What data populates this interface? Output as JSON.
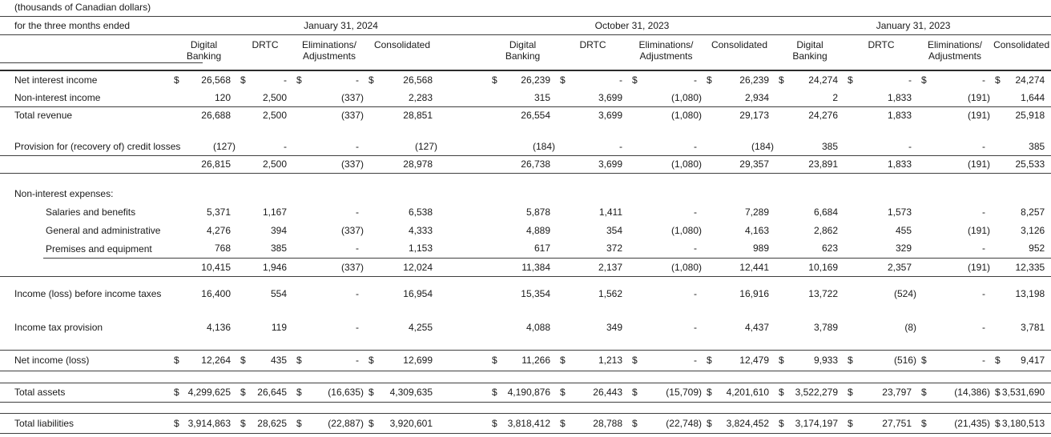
{
  "note": "(thousands of Canadian dollars)",
  "caption": "for the three months ended",
  "periods": [
    "January 31, 2024",
    "October 31, 2023",
    "January 31, 2023"
  ],
  "segment_columns": [
    [
      "Digital",
      "Banking"
    ],
    [
      "DRTC",
      ""
    ],
    [
      "Eliminations/",
      "Adjustments"
    ],
    [
      "Consolidated",
      ""
    ]
  ],
  "rows": [
    {
      "id": "net-interest-income",
      "label": "Net interest income",
      "dollar": true,
      "values": [
        "26,568",
        "-",
        "-",
        "26,568",
        "26,239",
        "-",
        "-",
        "26,239",
        "24,274",
        "-",
        "-",
        "24,274"
      ]
    },
    {
      "id": "non-interest-income",
      "label": "Non-interest income",
      "rule_bottom": true,
      "values": [
        "120",
        "2,500",
        "(337)",
        "2,283",
        "315",
        "3,699",
        "(1,080)",
        "2,934",
        "2",
        "1,833",
        "(191)",
        "1,644"
      ]
    },
    {
      "id": "total-revenue",
      "label": "Total revenue",
      "values": [
        "26,688",
        "2,500",
        "(337)",
        "28,851",
        "26,554",
        "3,699",
        "(1,080)",
        "29,173",
        "24,276",
        "1,833",
        "(191)",
        "25,918"
      ]
    },
    {
      "id": "spacer-1",
      "spacer": true
    },
    {
      "id": "provision-credit-losses",
      "label": "Provision for (recovery of) credit losses",
      "rule_bottom": true,
      "values": [
        "(127)",
        "-",
        "-",
        "(127)",
        "(184)",
        "-",
        "-",
        "(184)",
        "385",
        "-",
        "-",
        "385"
      ]
    },
    {
      "id": "revenue-after-provision",
      "label": "",
      "rule_bottom": true,
      "values": [
        "26,815",
        "2,500",
        "(337)",
        "28,978",
        "26,738",
        "3,699",
        "(1,080)",
        "29,357",
        "23,891",
        "1,833",
        "(191)",
        "25,533"
      ]
    },
    {
      "id": "spacer-2",
      "spacer": true
    },
    {
      "id": "non-interest-expenses-heading",
      "label": "Non-interest expenses:",
      "section": true
    },
    {
      "id": "salaries-and-benefits",
      "label": "Salaries and benefits",
      "indent": true,
      "values": [
        "5,371",
        "1,167",
        "-",
        "6,538",
        "5,878",
        "1,411",
        "-",
        "7,289",
        "6,684",
        "1,573",
        "-",
        "8,257"
      ]
    },
    {
      "id": "general-and-administrative",
      "label": "General and administrative",
      "indent": true,
      "values": [
        "4,276",
        "394",
        "(337)",
        "4,333",
        "4,889",
        "354",
        "(1,080)",
        "4,163",
        "2,862",
        "455",
        "(191)",
        "3,126"
      ]
    },
    {
      "id": "premises-and-equipment",
      "label": "Premises and equipment",
      "indent": true,
      "rule_bottom_indent": true,
      "values": [
        "768",
        "385",
        "-",
        "1,153",
        "617",
        "372",
        "-",
        "989",
        "623",
        "329",
        "-",
        "952"
      ]
    },
    {
      "id": "total-non-interest-expenses",
      "label": "",
      "rule_bottom": true,
      "values": [
        "10,415",
        "1,946",
        "(337)",
        "12,024",
        "11,384",
        "2,137",
        "(1,080)",
        "12,441",
        "10,169",
        "2,357",
        "(191)",
        "12,335"
      ]
    },
    {
      "id": "spacer-3",
      "spacer": true
    },
    {
      "id": "income-before-income-taxes",
      "label": "Income (loss) before income taxes",
      "values": [
        "16,400",
        "554",
        "-",
        "16,954",
        "15,354",
        "1,562",
        "-",
        "16,916",
        "13,722",
        "(524)",
        "-",
        "13,198"
      ]
    },
    {
      "id": "spacer-4",
      "spacer": true
    },
    {
      "id": "income-tax-provision",
      "label": "Income tax provision",
      "values": [
        "4,136",
        "119",
        "-",
        "4,255",
        "4,088",
        "349",
        "-",
        "4,437",
        "3,789",
        "(8)",
        "-",
        "3,781"
      ]
    },
    {
      "id": "spacer-5",
      "spacer": true
    },
    {
      "id": "net-income",
      "label": "Net income (loss)",
      "dollar": true,
      "rule_top": true,
      "rule_bottom": true,
      "values": [
        "12,264",
        "435",
        "-",
        "12,699",
        "11,266",
        "1,213",
        "-",
        "12,479",
        "9,933",
        "(516)",
        "-",
        "9,417"
      ]
    },
    {
      "id": "spacer-6",
      "spacer": true
    },
    {
      "id": "total-assets",
      "label": "Total assets",
      "dollar": true,
      "rule_top": true,
      "rule_bottom": true,
      "values": [
        "4,299,625",
        "26,645",
        "(16,635)",
        "4,309,635",
        "4,190,876",
        "26,443",
        "(15,709)",
        "4,201,610",
        "3,522,279",
        "23,797",
        "(14,386)",
        "3,531,690"
      ]
    },
    {
      "id": "spacer-7",
      "spacer": true
    },
    {
      "id": "total-liabilities",
      "label": "Total liabilities",
      "dollar": true,
      "rule_top": true,
      "rule_bottom": true,
      "values": [
        "3,914,863",
        "28,625",
        "(22,887)",
        "3,920,601",
        "3,818,412",
        "28,788",
        "(22,748)",
        "3,824,452",
        "3,174,197",
        "27,751",
        "(21,435)",
        "3,180,513"
      ]
    }
  ]
}
